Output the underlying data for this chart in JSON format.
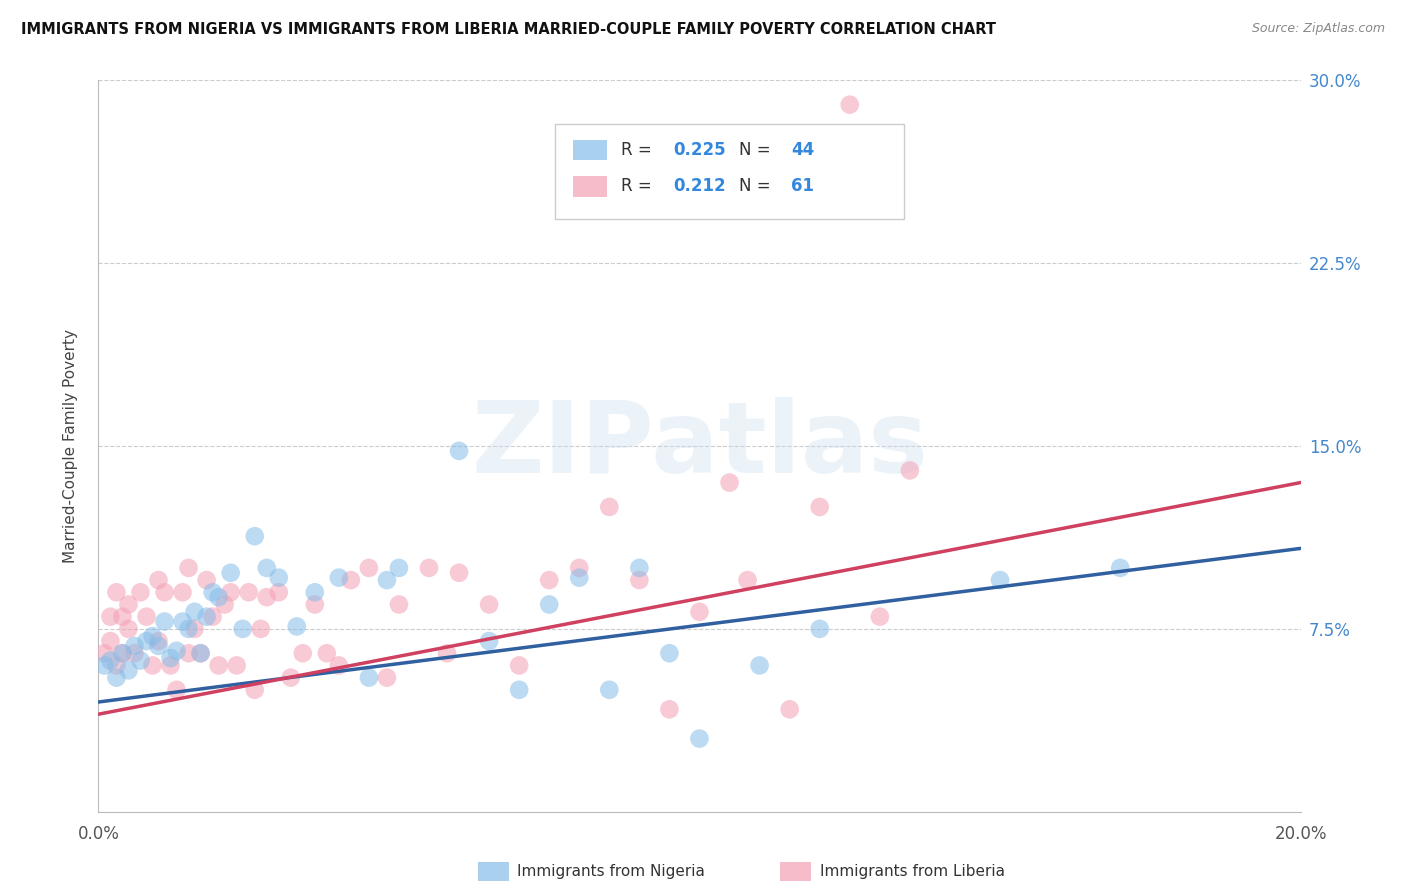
{
  "title": "IMMIGRANTS FROM NIGERIA VS IMMIGRANTS FROM LIBERIA MARRIED-COUPLE FAMILY POVERTY CORRELATION CHART",
  "source": "Source: ZipAtlas.com",
  "ylabel": "Married-Couple Family Poverty",
  "xlim": [
    0.0,
    0.2
  ],
  "ylim": [
    0.0,
    0.3
  ],
  "xtick_positions": [
    0.0,
    0.05,
    0.1,
    0.15,
    0.2
  ],
  "xtick_labels": [
    "0.0%",
    "",
    "",
    "",
    "20.0%"
  ],
  "ytick_positions": [
    0.0,
    0.075,
    0.15,
    0.225,
    0.3
  ],
  "ytick_labels_right": [
    "",
    "7.5%",
    "15.0%",
    "22.5%",
    "30.0%"
  ],
  "legend_series": [
    "Immigrants from Nigeria",
    "Immigrants from Liberia"
  ],
  "legend_R": [
    0.225,
    0.212
  ],
  "legend_N": [
    44,
    61
  ],
  "nigeria_color": "#85bce8",
  "liberia_color": "#f4a0b4",
  "nigeria_line_color": "#3060a0",
  "liberia_line_color": "#d04060",
  "watermark_text": "ZIPatlas",
  "nigeria_x": [
    0.001,
    0.002,
    0.003,
    0.004,
    0.005,
    0.006,
    0.007,
    0.008,
    0.009,
    0.01,
    0.011,
    0.012,
    0.013,
    0.014,
    0.015,
    0.016,
    0.017,
    0.018,
    0.019,
    0.02,
    0.022,
    0.024,
    0.026,
    0.028,
    0.03,
    0.033,
    0.036,
    0.04,
    0.045,
    0.048,
    0.05,
    0.06,
    0.065,
    0.07,
    0.075,
    0.08,
    0.085,
    0.09,
    0.095,
    0.1,
    0.11,
    0.12,
    0.15,
    0.17
  ],
  "nigeria_y": [
    0.06,
    0.062,
    0.055,
    0.065,
    0.058,
    0.068,
    0.062,
    0.07,
    0.072,
    0.068,
    0.078,
    0.063,
    0.066,
    0.078,
    0.075,
    0.082,
    0.065,
    0.08,
    0.09,
    0.088,
    0.098,
    0.075,
    0.113,
    0.1,
    0.096,
    0.076,
    0.09,
    0.096,
    0.055,
    0.095,
    0.1,
    0.148,
    0.07,
    0.05,
    0.085,
    0.096,
    0.05,
    0.1,
    0.065,
    0.03,
    0.06,
    0.075,
    0.095,
    0.1
  ],
  "liberia_x": [
    0.001,
    0.002,
    0.002,
    0.003,
    0.003,
    0.004,
    0.004,
    0.005,
    0.005,
    0.006,
    0.007,
    0.008,
    0.009,
    0.01,
    0.01,
    0.011,
    0.012,
    0.013,
    0.014,
    0.015,
    0.015,
    0.016,
    0.017,
    0.018,
    0.019,
    0.02,
    0.021,
    0.022,
    0.023,
    0.025,
    0.026,
    0.027,
    0.028,
    0.03,
    0.032,
    0.034,
    0.036,
    0.038,
    0.04,
    0.042,
    0.045,
    0.048,
    0.05,
    0.055,
    0.058,
    0.06,
    0.065,
    0.07,
    0.075,
    0.08,
    0.085,
    0.09,
    0.095,
    0.1,
    0.105,
    0.108,
    0.115,
    0.12,
    0.125,
    0.13,
    0.135
  ],
  "liberia_y": [
    0.065,
    0.08,
    0.07,
    0.06,
    0.09,
    0.08,
    0.065,
    0.075,
    0.085,
    0.065,
    0.09,
    0.08,
    0.06,
    0.07,
    0.095,
    0.09,
    0.06,
    0.05,
    0.09,
    0.1,
    0.065,
    0.075,
    0.065,
    0.095,
    0.08,
    0.06,
    0.085,
    0.09,
    0.06,
    0.09,
    0.05,
    0.075,
    0.088,
    0.09,
    0.055,
    0.065,
    0.085,
    0.065,
    0.06,
    0.095,
    0.1,
    0.055,
    0.085,
    0.1,
    0.065,
    0.098,
    0.085,
    0.06,
    0.095,
    0.1,
    0.125,
    0.095,
    0.042,
    0.082,
    0.135,
    0.095,
    0.042,
    0.125,
    0.29,
    0.08,
    0.14
  ]
}
